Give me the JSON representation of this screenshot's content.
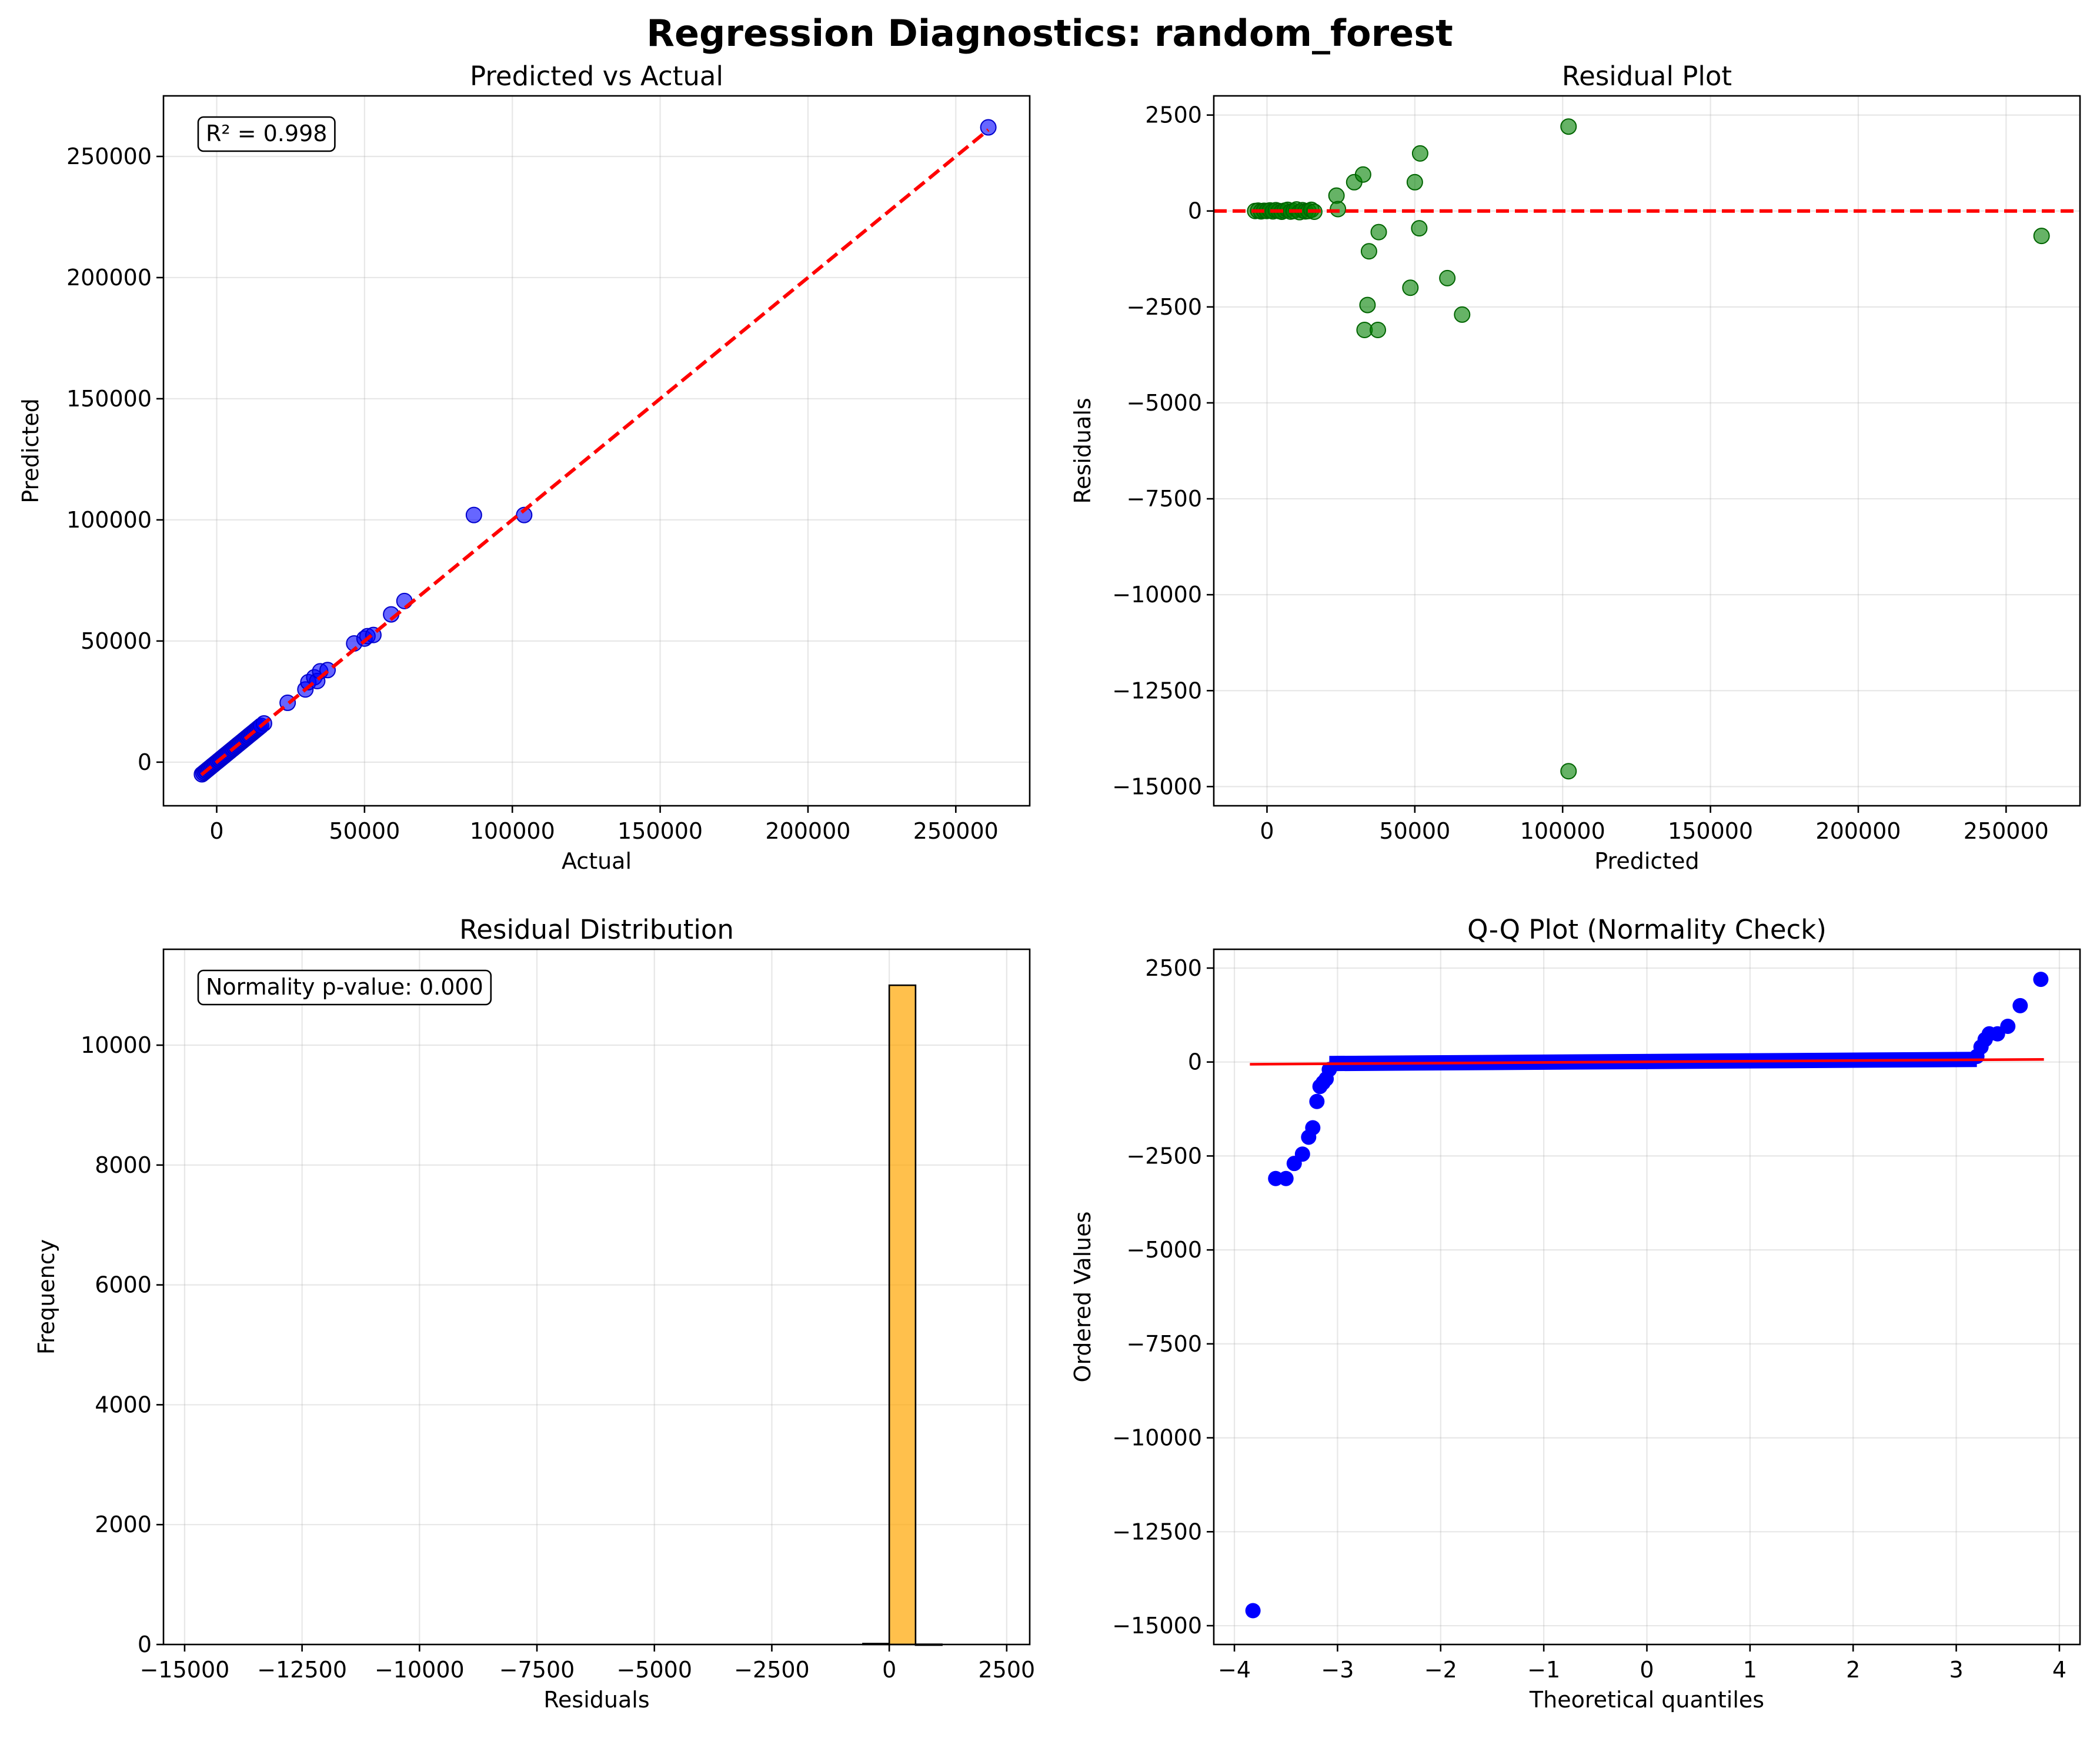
{
  "figure": {
    "title": "Regression Diagnostics: random_forest"
  },
  "chart_data": [
    {
      "id": "pva",
      "type": "scatter",
      "title": "Predicted vs Actual",
      "xlabel": "Actual",
      "ylabel": "Predicted",
      "xlim": [
        -18000,
        275000
      ],
      "ylim": [
        -18000,
        275000
      ],
      "xticks": [
        0,
        50000,
        100000,
        150000,
        200000,
        250000
      ],
      "yticks": [
        0,
        50000,
        100000,
        150000,
        200000,
        250000
      ],
      "grid": true,
      "annotation": "R² = 0.998",
      "annotation_position": "top-left",
      "point_color": "#0000ff",
      "reference_line": {
        "style": "dashed",
        "color": "#ff0000",
        "x": [
          -5200,
          261000
        ],
        "y": [
          -5200,
          261000
        ]
      },
      "points": {
        "x": [
          -5000,
          -4500,
          -4000,
          -3500,
          -3000,
          -2500,
          -2000,
          -1500,
          -1000,
          -500,
          0,
          500,
          1000,
          1500,
          2000,
          2500,
          3000,
          3500,
          4000,
          4500,
          5000,
          5500,
          6000,
          6500,
          7000,
          7500,
          8000,
          8500,
          9000,
          9500,
          10000,
          10500,
          11000,
          11500,
          12000,
          12500,
          13000,
          13500,
          14000,
          14500,
          15000,
          16000,
          24000,
          30000,
          31000,
          33000,
          34000,
          35000,
          37500,
          46500,
          50000,
          51000,
          53000,
          59000,
          63500,
          87000,
          104000,
          261000
        ],
        "y": [
          -5000,
          -4500,
          -4000,
          -3500,
          -3000,
          -2500,
          -2000,
          -1500,
          -1000,
          -500,
          0,
          500,
          1000,
          1500,
          2000,
          2500,
          3000,
          3500,
          4000,
          4500,
          5000,
          5500,
          6000,
          6500,
          7000,
          7500,
          8000,
          8500,
          9000,
          9500,
          10000,
          10500,
          11000,
          11500,
          12000,
          12500,
          13000,
          13500,
          14000,
          14500,
          15000,
          16000,
          24500,
          30000,
          33000,
          35000,
          33500,
          37500,
          38000,
          49000,
          51000,
          52000,
          52500,
          61000,
          66500,
          102000,
          102000,
          262000
        ]
      }
    },
    {
      "id": "resid",
      "type": "scatter",
      "title": "Residual Plot",
      "xlabel": "Predicted",
      "ylabel": "Residuals",
      "xlim": [
        -18000,
        275000
      ],
      "ylim": [
        -15500,
        3000
      ],
      "xticks": [
        0,
        50000,
        100000,
        150000,
        200000,
        250000
      ],
      "yticks": [
        2500,
        0,
        -2500,
        -5000,
        -7500,
        -10000,
        -12500,
        -15000
      ],
      "grid": true,
      "point_color": "#008000",
      "reference_line": {
        "style": "dashed",
        "color": "#ff0000",
        "y": 0
      },
      "points": {
        "x": [
          -4000,
          -3000,
          -2000,
          -1000,
          0,
          1000,
          2000,
          3000,
          4000,
          5000,
          6000,
          7000,
          8000,
          9000,
          10000,
          11000,
          12000,
          13000,
          14000,
          15000,
          16000,
          23500,
          24000,
          29500,
          32500,
          33000,
          34000,
          34500,
          37500,
          37800,
          48500,
          50000,
          51500,
          51800,
          61000,
          66000,
          102000,
          102000,
          262000
        ],
        "y": [
          0,
          10,
          -10,
          5,
          0,
          15,
          -10,
          20,
          0,
          -20,
          10,
          30,
          -15,
          0,
          40,
          -30,
          20,
          -10,
          0,
          30,
          -20,
          400,
          50,
          750,
          950,
          -3100,
          -2450,
          -1050,
          -3100,
          -550,
          -2000,
          750,
          -450,
          1500,
          -1750,
          -2700,
          2200,
          -14600,
          -650
        ]
      }
    },
    {
      "id": "hist",
      "type": "bar",
      "title": "Residual Distribution",
      "xlabel": "Residuals",
      "ylabel": "Frequency",
      "xlim": [
        -15450,
        2990
      ],
      "ylim": [
        0,
        11600
      ],
      "xticks": [
        -15000,
        -12500,
        -10000,
        -7500,
        -5000,
        -2500,
        0,
        2500
      ],
      "yticks": [
        0,
        2000,
        4000,
        6000,
        8000,
        10000
      ],
      "grid": true,
      "annotation": "Normality p-value: 0.000",
      "annotation_position": "top-left",
      "bar_color": "#ffa500",
      "bins": [
        {
          "x0": -560,
          "x1": 0,
          "count": 15
        },
        {
          "x0": 0,
          "x1": 560,
          "count": 11000
        },
        {
          "x0": 560,
          "x1": 1120,
          "count": 4
        }
      ]
    },
    {
      "id": "qq",
      "type": "scatter",
      "title": "Q-Q Plot (Normality Check)",
      "xlabel": "Theoretical quantiles",
      "ylabel": "Ordered Values",
      "xlim": [
        -4.2,
        4.2
      ],
      "ylim": [
        -15500,
        3000
      ],
      "xticks": [
        -4,
        -3,
        -2,
        -1,
        0,
        1,
        2,
        3,
        4
      ],
      "yticks": [
        2500,
        0,
        -2500,
        -5000,
        -7500,
        -10000,
        -12500,
        -15000
      ],
      "grid": true,
      "point_color": "#0000ff",
      "fit_line": {
        "color": "#ff0000",
        "x": [
          -3.85,
          3.85
        ],
        "y": [
          -60,
          70
        ]
      },
      "points": {
        "x": [
          -3.82,
          -3.6,
          -3.5,
          -3.42,
          -3.34,
          -3.28,
          -3.24,
          -3.2,
          -3.17,
          -3.14,
          -3.11,
          -3.08,
          3.2,
          3.24,
          3.28,
          3.32,
          3.4,
          3.5,
          3.62,
          3.82
        ],
        "y": [
          -14600,
          -3100,
          -3100,
          -2700,
          -2450,
          -2000,
          -1750,
          -1050,
          -650,
          -550,
          -450,
          -200,
          150,
          400,
          600,
          750,
          750,
          950,
          1500,
          2200
        ]
      },
      "body_band": {
        "x0": -3.08,
        "x1": 3.2,
        "y0": -40,
        "y1": 70
      }
    }
  ]
}
